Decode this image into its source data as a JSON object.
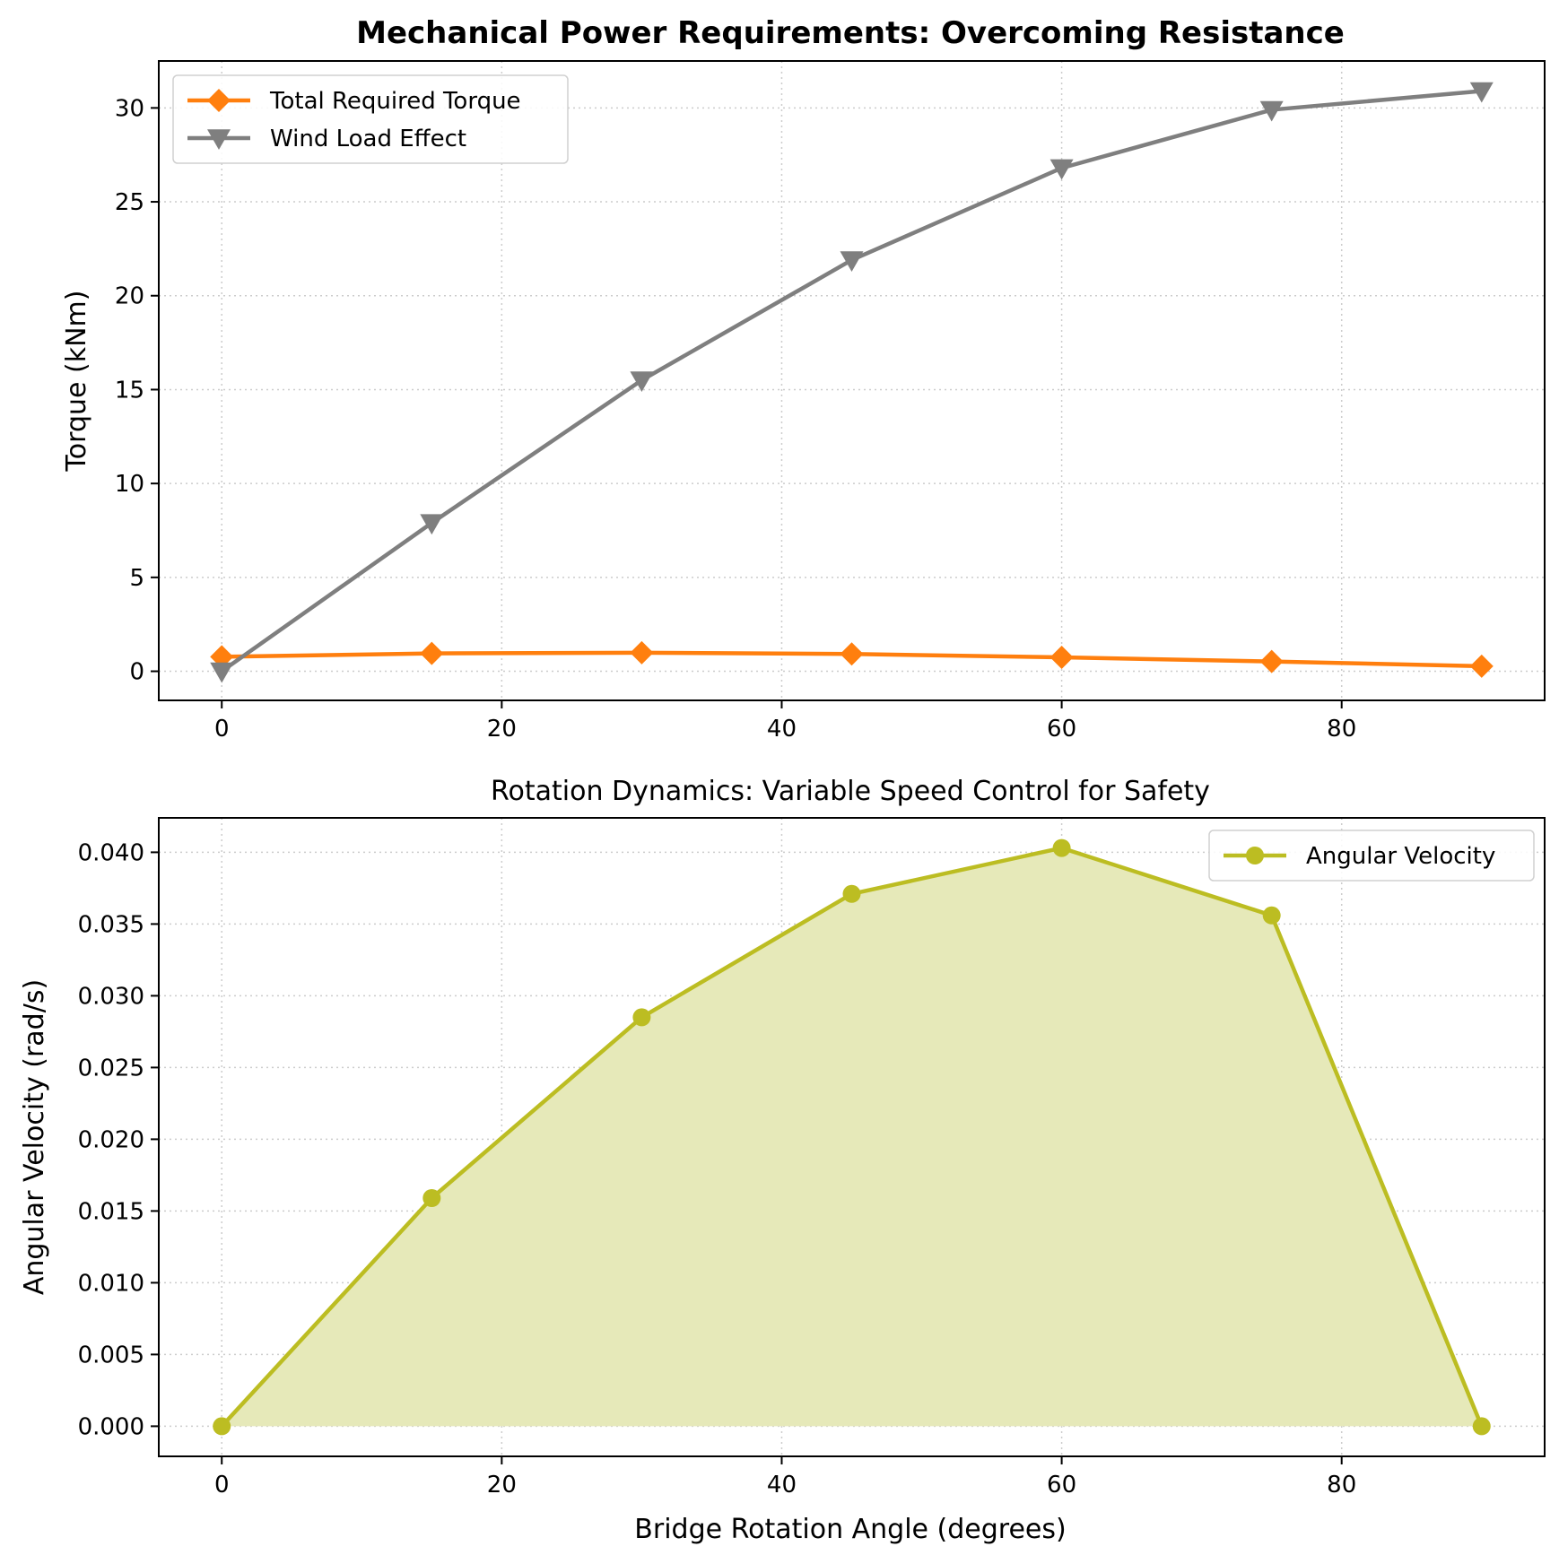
{
  "colors": {
    "total_torque": "#ff7f0e",
    "wind_load": "#7f7f7f",
    "angular_velocity": "#bcbd22",
    "fill": "#e6e9b9",
    "grid": "#cccccc"
  },
  "chart_data": [
    {
      "type": "line",
      "title": "Mechanical Power Requirements: Overcoming Resistance",
      "xlabel": "",
      "ylabel": "Torque (kNm)",
      "xlim": [
        -4.5,
        94.5
      ],
      "ylim": [
        -1.55,
        32.5
      ],
      "xticks": [
        0,
        20,
        40,
        60,
        80
      ],
      "yticks": [
        0,
        5,
        10,
        15,
        20,
        25,
        30
      ],
      "x": [
        0,
        15,
        30,
        45,
        60,
        75,
        90
      ],
      "grid": true,
      "legend_position": "upper-left",
      "series": [
        {
          "name": "Total Required Torque",
          "marker": "diamond",
          "color_key": "total_torque",
          "values": [
            0.77,
            0.95,
            0.99,
            0.92,
            0.74,
            0.52,
            0.27
          ]
        },
        {
          "name": "Wind Load Effect",
          "marker": "triangle-down",
          "color_key": "wind_load",
          "values": [
            0.0,
            7.9,
            15.5,
            21.9,
            26.8,
            29.9,
            30.9
          ]
        }
      ]
    },
    {
      "type": "area",
      "title": "Rotation Dynamics: Variable Speed Control for Safety",
      "xlabel": "Bridge Rotation Angle (degrees)",
      "ylabel": "Angular Velocity (rad/s)",
      "xlim": [
        -4.5,
        94.5
      ],
      "ylim": [
        -0.0021,
        0.0424
      ],
      "xticks": [
        0,
        20,
        40,
        60,
        80
      ],
      "yticks": [
        0.0,
        0.005,
        0.01,
        0.015,
        0.02,
        0.025,
        0.03,
        0.035,
        0.04
      ],
      "ytick_labels": [
        "0.000",
        "0.005",
        "0.010",
        "0.015",
        "0.020",
        "0.025",
        "0.030",
        "0.035",
        "0.040"
      ],
      "x": [
        0,
        15,
        30,
        45,
        60,
        75,
        90
      ],
      "grid": true,
      "legend_position": "upper-right",
      "series": [
        {
          "name": "Angular Velocity",
          "marker": "circle",
          "color_key": "angular_velocity",
          "values": [
            0.0,
            0.0159,
            0.0285,
            0.0371,
            0.0403,
            0.0356,
            0.0
          ]
        }
      ]
    }
  ]
}
